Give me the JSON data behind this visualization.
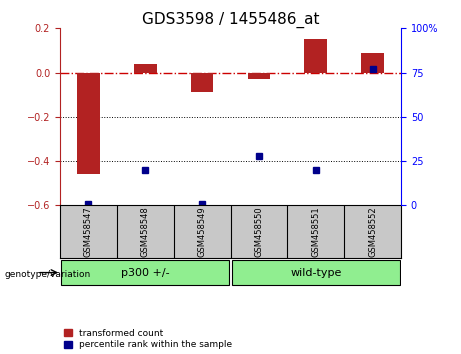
{
  "title": "GDS3598 / 1455486_at",
  "samples": [
    "GSM458547",
    "GSM458548",
    "GSM458549",
    "GSM458550",
    "GSM458551",
    "GSM458552"
  ],
  "red_values": [
    -0.46,
    0.04,
    -0.09,
    -0.03,
    0.15,
    0.09
  ],
  "blue_values_pct": [
    1,
    20,
    1,
    28,
    20,
    77
  ],
  "left_ylim": [
    -0.6,
    0.2
  ],
  "right_ylim": [
    0,
    100
  ],
  "left_yticks": [
    -0.6,
    -0.4,
    -0.2,
    0.0,
    0.2
  ],
  "right_yticks": [
    0,
    25,
    50,
    75,
    100
  ],
  "groups": [
    {
      "label": "p300 +/-",
      "color": "#90EE90",
      "start": 0,
      "end": 2
    },
    {
      "label": "wild-type",
      "color": "#90EE90",
      "start": 3,
      "end": 5
    }
  ],
  "genotype_label": "genotype/variation",
  "legend_red": "transformed count",
  "legend_blue": "percentile rank within the sample",
  "bar_width": 0.4,
  "red_color": "#B22222",
  "blue_color": "#00008B",
  "background_plot": "#FFFFFF",
  "background_sample": "#C8C8C8",
  "hline_color": "#CC0000",
  "dotted_color": "#000000",
  "title_fontsize": 11,
  "tick_fontsize": 7,
  "label_fontsize": 7
}
